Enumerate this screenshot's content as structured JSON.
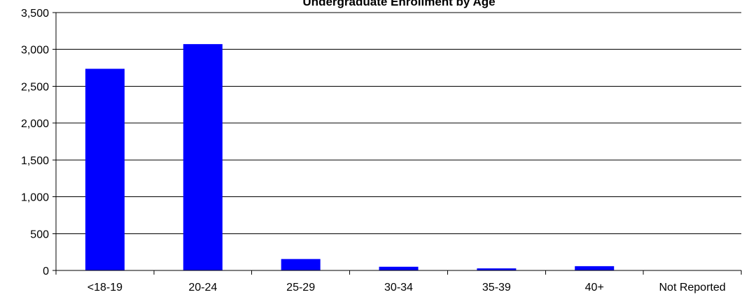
{
  "chart_data": {
    "type": "bar",
    "title": "Undergraduate Enrollment by Age",
    "xlabel": "",
    "ylabel": "",
    "categories": [
      "<18-19",
      "20-24",
      "25-29",
      "30-34",
      "35-39",
      "40+",
      "Not Reported"
    ],
    "values": [
      2737,
      3072,
      155,
      50,
      28,
      58,
      0
    ],
    "ylim": [
      0,
      3500
    ],
    "yticks": [
      0,
      500,
      1000,
      1500,
      2000,
      2500,
      3000,
      3500
    ],
    "ytick_labels": [
      "0",
      "500",
      "1,000",
      "1,500",
      "2,000",
      "2,500",
      "3,000",
      "3,500"
    ],
    "grid": "horizontal",
    "legend": "none",
    "bar_color": "#0000ff"
  }
}
